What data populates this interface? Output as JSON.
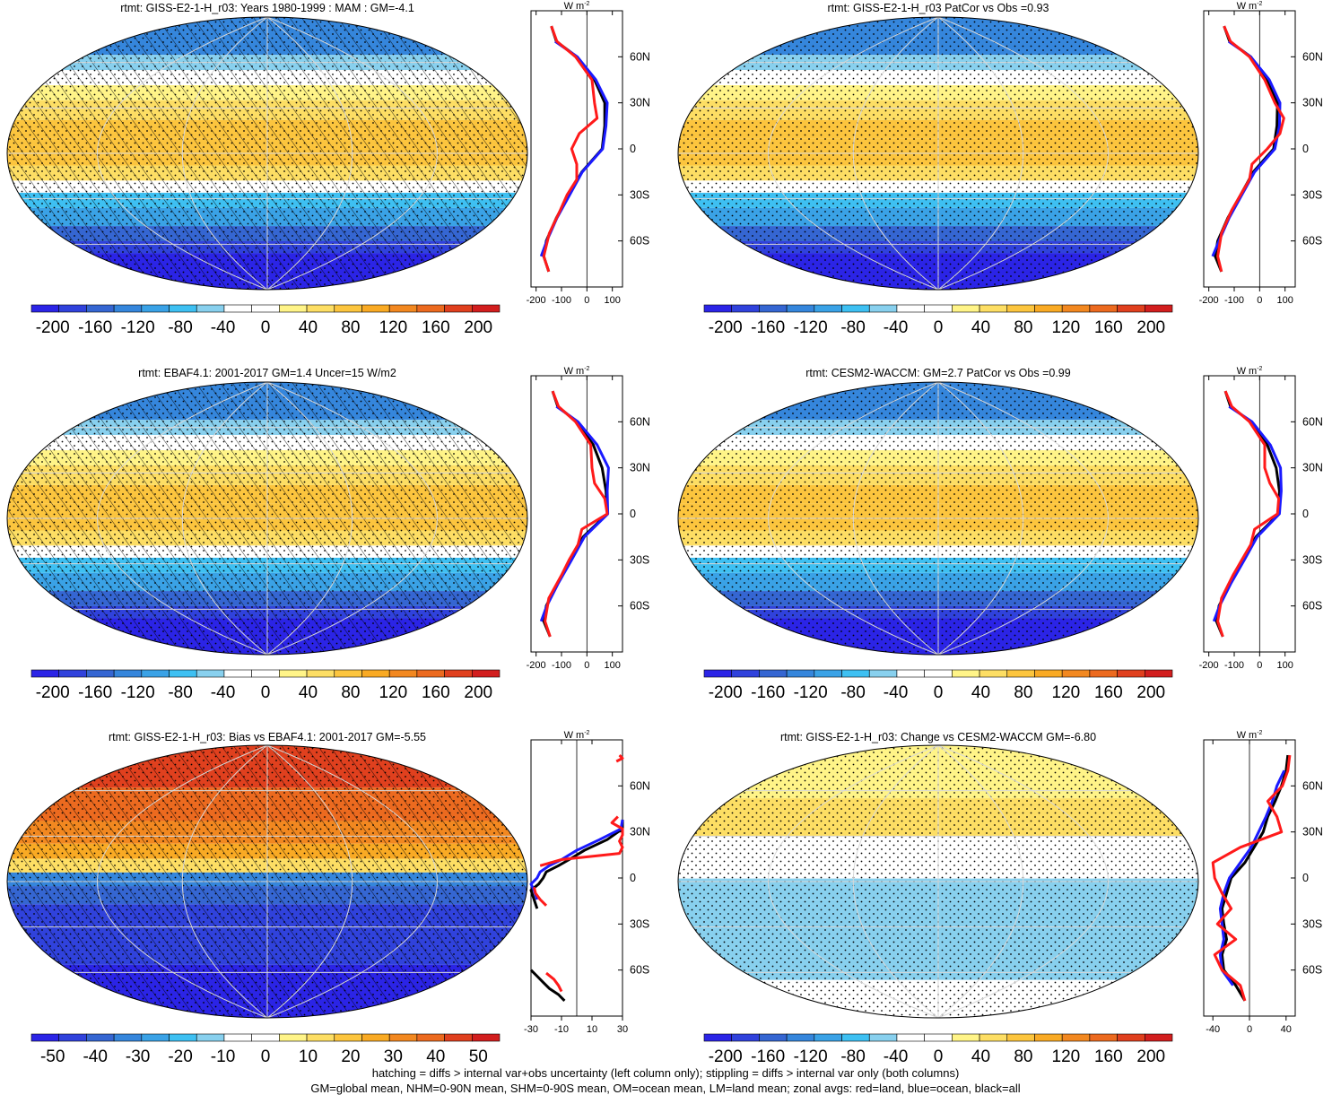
{
  "chart_data": [
    {
      "type": "heatmap",
      "title": "rtmt: GISS-E2-1-H_r03: Years 1980-1999 : MAM : GM=-4.1",
      "colorbar": {
        "ticks": [
          "-200",
          "-160",
          "-120",
          "-80",
          "-40",
          "0",
          "40",
          "80",
          "120",
          "160",
          "200"
        ],
        "range": [
          -220,
          220
        ]
      },
      "pattern": "climatology",
      "hatching": true,
      "zonal_avg": {
        "units": "W m",
        "units_sup": "-2",
        "xlim": [
          -220,
          140
        ],
        "xticks": [
          "-200",
          "-100",
          "0",
          "100"
        ],
        "lat_ticks": [
          "60N",
          "30N",
          "0",
          "30S",
          "60S"
        ],
        "series": [
          {
            "name": "all",
            "color": "#000000",
            "lat": [
              80,
              70,
              60,
              45,
              30,
              15,
              0,
              -15,
              -30,
              -45,
              -60,
              -70,
              -80
            ],
            "values": [
              -140,
              -120,
              -40,
              30,
              70,
              70,
              60,
              -20,
              -70,
              -120,
              -160,
              -170,
              -150
            ]
          },
          {
            "name": "ocean",
            "color": "#1a1aff",
            "lat": [
              70,
              60,
              45,
              30,
              15,
              0,
              -15,
              -30,
              -45,
              -60,
              -70
            ],
            "values": [
              -125,
              -38,
              35,
              80,
              75,
              62,
              -18,
              -68,
              -118,
              -158,
              -180
            ]
          },
          {
            "name": "land",
            "color": "#ff1a1a",
            "lat": [
              80,
              70,
              60,
              45,
              30,
              20,
              10,
              0,
              -10,
              -20,
              -30,
              -40,
              -55,
              -70,
              -80
            ],
            "values": [
              -140,
              -118,
              -45,
              20,
              30,
              40,
              -30,
              -60,
              -40,
              -40,
              -78,
              -105,
              -148,
              -170,
              -150
            ]
          }
        ]
      }
    },
    {
      "type": "heatmap",
      "title": "rtmt: GISS-E2-1-H_r03 PatCor vs Obs =0.93",
      "colorbar": {
        "ticks": [
          "-200",
          "-160",
          "-120",
          "-80",
          "-40",
          "0",
          "40",
          "80",
          "120",
          "160",
          "200"
        ],
        "range": [
          -220,
          220
        ]
      },
      "pattern": "climatology",
      "hatching": false,
      "zonal_avg": {
        "units": "W m",
        "units_sup": "-2",
        "xlim": [
          -220,
          140
        ],
        "xticks": [
          "-200",
          "-100",
          "0",
          "100"
        ],
        "lat_ticks": [
          "60N",
          "30N",
          "0",
          "30S",
          "60S"
        ],
        "series": [
          {
            "name": "all",
            "color": "#000000",
            "lat": [
              80,
              70,
              60,
              45,
              30,
              15,
              0,
              -15,
              -30,
              -45,
              -60,
              -70,
              -80
            ],
            "values": [
              -140,
              -118,
              -35,
              30,
              70,
              68,
              55,
              -25,
              -75,
              -125,
              -165,
              -175,
              -150
            ]
          },
          {
            "name": "ocean",
            "color": "#1a1aff",
            "lat": [
              70,
              60,
              45,
              30,
              15,
              0,
              -15,
              -30,
              -45,
              -60,
              -70
            ],
            "values": [
              -122,
              -35,
              38,
              80,
              78,
              60,
              -20,
              -70,
              -120,
              -160,
              -185
            ]
          },
          {
            "name": "land",
            "color": "#ff1a1a",
            "lat": [
              80,
              70,
              60,
              45,
              30,
              20,
              10,
              0,
              -10,
              -20,
              -30,
              -40,
              -55,
              -70,
              -80
            ],
            "values": [
              -140,
              -115,
              -40,
              20,
              60,
              95,
              80,
              30,
              -30,
              -40,
              -75,
              -110,
              -150,
              -165,
              -150
            ]
          }
        ]
      }
    },
    {
      "type": "heatmap",
      "title": "rtmt: EBAF4.1: 2001-2017 GM=1.4 Uncer=15 W/m2",
      "colorbar": {
        "ticks": [
          "-200",
          "-160",
          "-120",
          "-80",
          "-40",
          "0",
          "40",
          "80",
          "120",
          "160",
          "200"
        ],
        "range": [
          -220,
          220
        ]
      },
      "pattern": "climatology",
      "hatching": true,
      "zonal_avg": {
        "units": "W m",
        "units_sup": "-2",
        "xlim": [
          -220,
          140
        ],
        "xticks": [
          "-200",
          "-100",
          "0",
          "100"
        ],
        "lat_ticks": [
          "60N",
          "30N",
          "0",
          "30S",
          "60S"
        ],
        "series": [
          {
            "name": "all",
            "color": "#000000",
            "lat": [
              80,
              70,
              60,
              45,
              30,
              15,
              0,
              -15,
              -30,
              -45,
              -60,
              -70,
              -80
            ],
            "values": [
              -135,
              -115,
              -40,
              25,
              60,
              75,
              80,
              -15,
              -65,
              -115,
              -160,
              -170,
              -145
            ]
          },
          {
            "name": "ocean",
            "color": "#1a1aff",
            "lat": [
              70,
              60,
              45,
              30,
              15,
              0,
              -15,
              -30,
              -45,
              -60,
              -70
            ],
            "values": [
              -120,
              -35,
              40,
              85,
              80,
              82,
              -10,
              -60,
              -112,
              -158,
              -180
            ]
          },
          {
            "name": "land",
            "color": "#ff1a1a",
            "lat": [
              80,
              70,
              60,
              45,
              30,
              20,
              10,
              0,
              -10,
              -20,
              -30,
              -40,
              -55,
              -70,
              -80
            ],
            "values": [
              -135,
              -112,
              -45,
              15,
              20,
              30,
              70,
              80,
              -20,
              -35,
              -70,
              -100,
              -150,
              -165,
              -145
            ]
          }
        ]
      }
    },
    {
      "type": "heatmap",
      "title": "rtmt: CESM2-WACCM: GM=2.7 PatCor vs Obs =0.99",
      "colorbar": {
        "ticks": [
          "-200",
          "-160",
          "-120",
          "-80",
          "-40",
          "0",
          "40",
          "80",
          "120",
          "160",
          "200"
        ],
        "range": [
          -220,
          220
        ]
      },
      "pattern": "climatology",
      "hatching": false,
      "zonal_avg": {
        "units": "W m",
        "units_sup": "-2",
        "xlim": [
          -220,
          140
        ],
        "xticks": [
          "-200",
          "-100",
          "0",
          "100"
        ],
        "lat_ticks": [
          "60N",
          "30N",
          "0",
          "30S",
          "60S"
        ],
        "series": [
          {
            "name": "all",
            "color": "#000000",
            "lat": [
              80,
              70,
              60,
              45,
              30,
              15,
              0,
              -15,
              -30,
              -45,
              -60,
              -70,
              -80
            ],
            "values": [
              -135,
              -115,
              -35,
              30,
              65,
              78,
              75,
              -15,
              -65,
              -115,
              -160,
              -170,
              -145
            ]
          },
          {
            "name": "ocean",
            "color": "#1a1aff",
            "lat": [
              70,
              60,
              45,
              30,
              15,
              0,
              -15,
              -30,
              -45,
              -60,
              -70
            ],
            "values": [
              -120,
              -30,
              42,
              82,
              85,
              78,
              -10,
              -60,
              -112,
              -158,
              -180
            ]
          },
          {
            "name": "land",
            "color": "#ff1a1a",
            "lat": [
              80,
              70,
              60,
              45,
              30,
              20,
              10,
              0,
              -10,
              -20,
              -30,
              -40,
              -55,
              -70,
              -80
            ],
            "values": [
              -135,
              -110,
              -40,
              20,
              20,
              40,
              75,
              70,
              -20,
              -35,
              -70,
              -105,
              -150,
              -165,
              -145
            ]
          }
        ]
      }
    },
    {
      "type": "heatmap",
      "title": "rtmt: GISS-E2-1-H_r03: Bias vs EBAF4.1: 2001-2017 GM=-5.55",
      "colorbar": {
        "ticks": [
          "-50",
          "-40",
          "-30",
          "-20",
          "-10",
          "0",
          "10",
          "20",
          "30",
          "40",
          "50"
        ],
        "range": [
          -55,
          55
        ]
      },
      "pattern": "bias",
      "hatching": true,
      "zonal_avg": {
        "units": "W m",
        "units_sup": "-2",
        "xlim": [
          -30,
          30
        ],
        "xticks": [
          "-30",
          "-10",
          "10",
          "30"
        ],
        "lat_ticks": [
          "60N",
          "30N",
          "0",
          "30S",
          "60S"
        ],
        "series": [
          {
            "name": "all",
            "color": "#000000",
            "lat": [
              38,
              32,
              25,
              18,
              12,
              8,
              4,
              0,
              -4,
              -8,
              -14,
              -20
            ],
            "values": [
              30,
              30,
              20,
              5,
              -5,
              -12,
              -20,
              -22,
              -25,
              -30,
              -28,
              -26
            ]
          },
          {
            "name": "all",
            "color": "#000000",
            "lat": [
              -60,
              -64,
              -68,
              -72,
              -76,
              -80
            ],
            "values": [
              -30,
              -26,
              -22,
              -18,
              -12,
              -8
            ]
          },
          {
            "name": "ocean",
            "color": "#1a1aff",
            "lat": [
              38,
              32,
              25,
              18,
              12,
              8,
              4,
              0,
              -4,
              -8,
              -14
            ],
            "values": [
              30,
              29,
              15,
              0,
              -10,
              -18,
              -24,
              -26,
              -30,
              -28,
              -26
            ]
          },
          {
            "name": "land",
            "color": "#ff1a1a",
            "lat": [
              80,
              78,
              76
            ],
            "values": [
              28,
              30,
              26
            ]
          },
          {
            "name": "land",
            "color": "#ff1a1a",
            "lat": [
              40,
              36,
              32,
              28,
              24,
              20,
              16,
              12,
              8
            ],
            "values": [
              27,
              23,
              30,
              30,
              28,
              30,
              28,
              -10,
              -24
            ]
          },
          {
            "name": "land",
            "color": "#ff1a1a",
            "lat": [
              -6,
              -10,
              -14,
              -18
            ],
            "values": [
              -28,
              -27,
              -24,
              -20
            ]
          },
          {
            "name": "land",
            "color": "#ff1a1a",
            "lat": [
              -62,
              -66,
              -70,
              -74
            ],
            "values": [
              -20,
              -15,
              -12,
              -10
            ]
          }
        ]
      }
    },
    {
      "type": "heatmap",
      "title": "rtmt: GISS-E2-1-H_r03: Change vs CESM2-WACCM GM=-6.80",
      "colorbar": {
        "ticks": [
          "-200",
          "-160",
          "-120",
          "-80",
          "-40",
          "0",
          "40",
          "80",
          "120",
          "160",
          "200"
        ],
        "range": [
          -220,
          220
        ]
      },
      "pattern": "change",
      "hatching": false,
      "zonal_avg": {
        "units": "W m",
        "units_sup": "-2",
        "xlim": [
          -50,
          50
        ],
        "xticks": [
          "-40",
          "0",
          "40"
        ],
        "lat_ticks": [
          "60N",
          "30N",
          "0",
          "30S",
          "60S"
        ],
        "series": [
          {
            "name": "all",
            "color": "#000000",
            "lat": [
              80,
              70,
              60,
              50,
              40,
              30,
              20,
              10,
              0,
              -10,
              -20,
              -30,
              -40,
              -50,
              -60,
              -70,
              -80
            ],
            "values": [
              42,
              40,
              35,
              28,
              20,
              15,
              5,
              -5,
              -20,
              -25,
              -30,
              -28,
              -25,
              -30,
              -28,
              -15,
              -5
            ]
          },
          {
            "name": "ocean",
            "color": "#1a1aff",
            "lat": [
              70,
              60,
              50,
              40,
              30,
              20,
              10,
              0,
              -10,
              -20,
              -30,
              -40,
              -50,
              -60,
              -70
            ],
            "values": [
              38,
              30,
              25,
              18,
              10,
              2,
              -10,
              -22,
              -28,
              -32,
              -30,
              -28,
              -32,
              -30,
              -18
            ]
          },
          {
            "name": "land",
            "color": "#ff1a1a",
            "lat": [
              80,
              70,
              60,
              50,
              40,
              30,
              20,
              10,
              0,
              -10,
              -20,
              -30,
              -40,
              -50,
              -60,
              -70,
              -80
            ],
            "values": [
              44,
              42,
              36,
              20,
              30,
              35,
              -10,
              -40,
              -38,
              -30,
              -20,
              -35,
              -15,
              -38,
              -30,
              -10,
              -5
            ]
          }
        ]
      }
    }
  ],
  "footnote": {
    "line1": "hatching = diffs > internal var+obs uncertainty (left column only); stippling = diffs > internal var only (both columns)",
    "line2": "GM=global mean, NHM=0-90N mean, SHM=0-90S mean, OM=ocean mean, LM=land mean; zonal avgs: red=land, blue=ocean, black=all"
  },
  "colors": {
    "palette": [
      "#2b24e6",
      "#3042dc",
      "#3566d2",
      "#3586dc",
      "#3aa2e6",
      "#3ec0f2",
      "#88d0ee",
      "#ffffff",
      "#ffffff",
      "#fff488",
      "#fdde64",
      "#fcc53e",
      "#f9aa24",
      "#f28820",
      "#ec6a1f",
      "#e0401e",
      "#d21e1e"
    ]
  }
}
